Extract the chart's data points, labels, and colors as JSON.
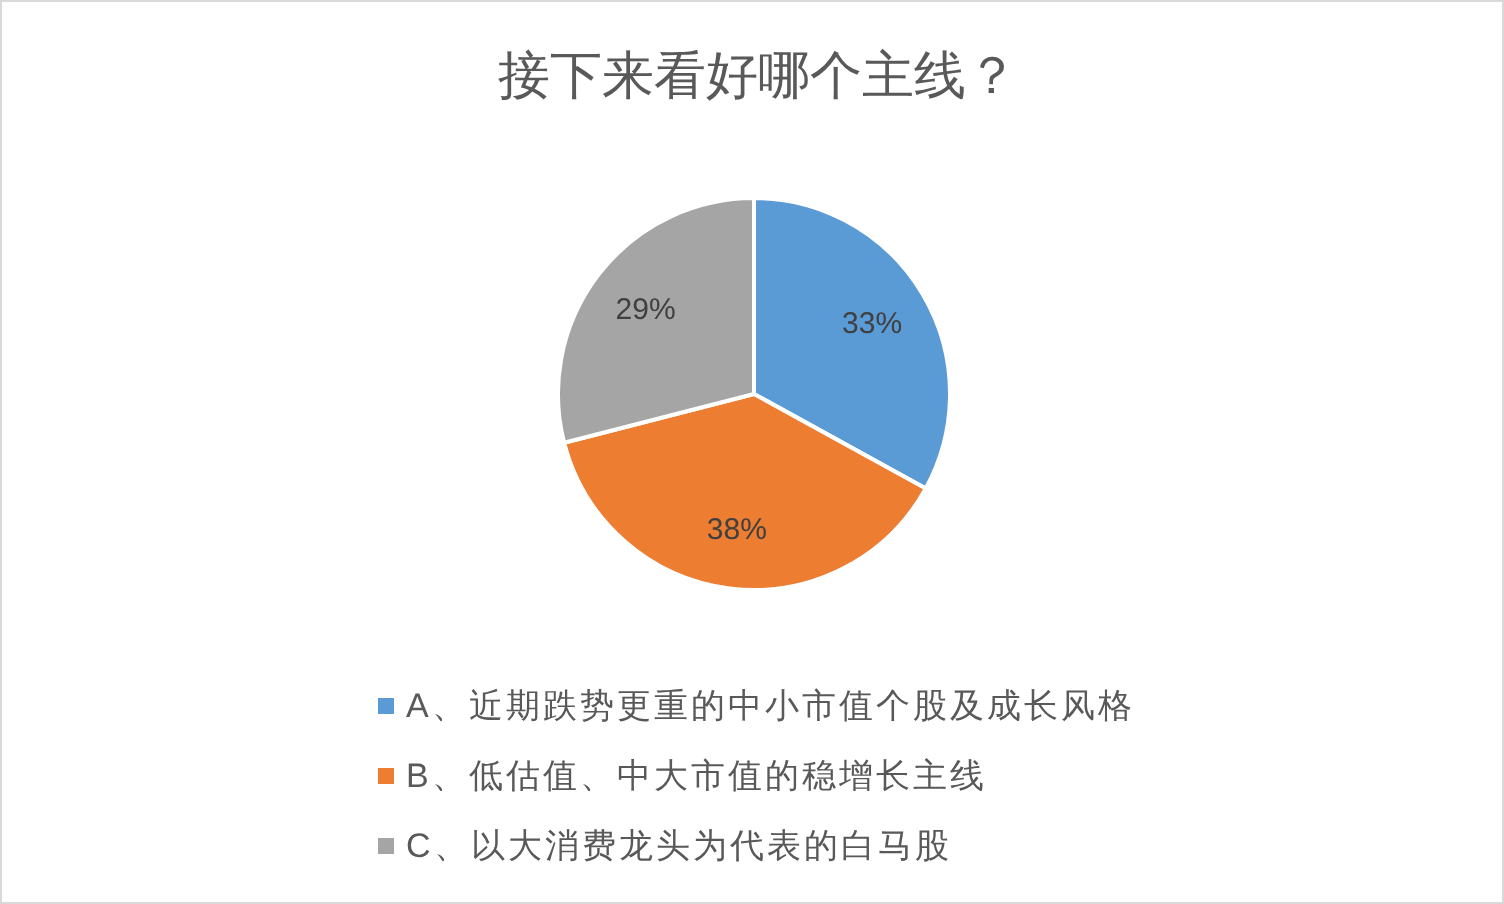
{
  "chart_data": {
    "type": "pie",
    "title": "接下来看好哪个主线？",
    "categories": [
      "A、近期跌势更重的中小市值个股及成长风格",
      "B、低估值、中大市值的稳增长主线",
      "C、以大消费龙头为代表的白马股"
    ],
    "values": [
      33,
      38,
      29
    ],
    "colors": [
      "#5b9bd5",
      "#ed7d31",
      "#a5a5a5"
    ],
    "value_labels": [
      "33%",
      "38%",
      "29%"
    ],
    "legend": "bottom"
  }
}
